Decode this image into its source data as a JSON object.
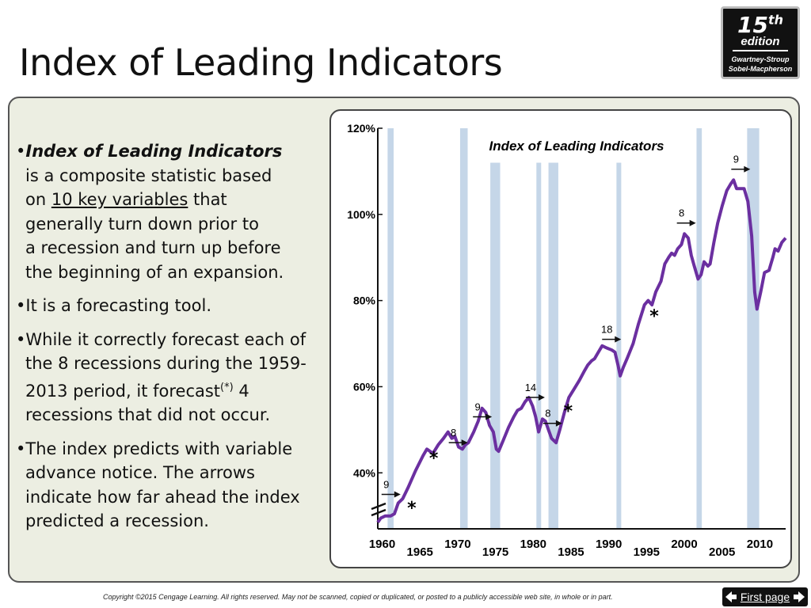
{
  "page": {
    "title": "Index of Leading Indicators",
    "badge": {
      "edition_number": "15",
      "edition_suffix": "th",
      "edition_word": "edition",
      "authors": [
        "Gwartney-Stroup",
        "Sobel-Macpherson"
      ]
    },
    "bullets": [
      {
        "lead": "Index of Leading Indicators",
        "lines_a": [
          "is a composite statistic based",
          "on "
        ],
        "underlined": "10 key variables",
        "lines_b": [
          " that",
          "generally turn down prior to",
          "a recession and turn up before",
          "the beginning of an expansion."
        ]
      },
      {
        "text": "It is a forecasting tool."
      },
      {
        "text_a": "While it correctly forecast each of the 8 recessions during the 1959-2013 period, it forecast",
        "sup": "(*)",
        "text_b": "4 recessions that did not occur."
      },
      {
        "text": "The index predicts with variable advance notice. The arrows indicate how far ahead the index predicted a recession."
      }
    ],
    "footer": "Copyright ©2015 Cengage Learning. All rights reserved. May not be scanned, copied or duplicated, or posted to a publicly accessible web site, in whole or in part.",
    "nav": {
      "label": "First page",
      "left_arrow_icon": "arrow-left-icon",
      "right_arrow_icon": "arrow-right-icon"
    }
  },
  "colors": {
    "line": "#6b2fa0",
    "recession_band": "#c5d6e8",
    "panel_bg": "#eceee2",
    "badge_bg": "#111111"
  },
  "chart_data": {
    "type": "line",
    "title": "Index of Leading Indicators",
    "xlabel": "",
    "ylabel": "",
    "x_ticks_row1": [
      "1960",
      "1970",
      "1980",
      "1990",
      "2000",
      "2010"
    ],
    "x_ticks_row2": [
      "1965",
      "1975",
      "1985",
      "1995",
      "2005"
    ],
    "y_ticks": [
      "40%",
      "60%",
      "80%",
      "100%",
      "120%"
    ],
    "ylim": [
      27,
      120
    ],
    "xlim": [
      1959,
      2013
    ],
    "axis_break": true,
    "recessions": [
      [
        1960.3,
        1961.1
      ],
      [
        1969.9,
        1970.9
      ],
      [
        1973.9,
        1975.2
      ],
      [
        1980.0,
        1980.6
      ],
      [
        1981.6,
        1982.9
      ],
      [
        1990.6,
        1991.2
      ],
      [
        2001.2,
        2001.9
      ],
      [
        2007.9,
        2009.5
      ]
    ],
    "series": [
      {
        "values": [
          [
            1959.0,
            28.5
          ],
          [
            1959.4,
            29.5
          ],
          [
            1960.0,
            30.0
          ],
          [
            1960.7,
            30.0
          ],
          [
            1961.2,
            30.5
          ],
          [
            1961.7,
            33.0
          ],
          [
            1962.3,
            34.0
          ],
          [
            1963.0,
            36.5
          ],
          [
            1964.0,
            40.5
          ],
          [
            1965.0,
            44.0
          ],
          [
            1965.5,
            45.5
          ],
          [
            1966.3,
            44.5
          ],
          [
            1967.0,
            46.5
          ],
          [
            1967.7,
            48.0
          ],
          [
            1968.3,
            49.5
          ],
          [
            1968.8,
            48.0
          ],
          [
            1969.2,
            48.5
          ],
          [
            1969.7,
            46.0
          ],
          [
            1970.2,
            45.5
          ],
          [
            1970.6,
            46.5
          ],
          [
            1971.0,
            47.0
          ],
          [
            1971.7,
            49.5
          ],
          [
            1972.3,
            52.0
          ],
          [
            1972.8,
            55.0
          ],
          [
            1973.3,
            54.0
          ],
          [
            1973.8,
            51.0
          ],
          [
            1974.3,
            49.5
          ],
          [
            1974.7,
            45.5
          ],
          [
            1975.0,
            45.0
          ],
          [
            1975.6,
            47.5
          ],
          [
            1976.3,
            50.5
          ],
          [
            1977.0,
            53.0
          ],
          [
            1977.5,
            54.5
          ],
          [
            1978.0,
            55.0
          ],
          [
            1978.5,
            56.5
          ],
          [
            1979.0,
            57.5
          ],
          [
            1979.5,
            55.5
          ],
          [
            1979.9,
            53.0
          ],
          [
            1980.3,
            49.5
          ],
          [
            1980.8,
            52.5
          ],
          [
            1981.2,
            52.0
          ],
          [
            1981.6,
            50.0
          ],
          [
            1982.0,
            48.0
          ],
          [
            1982.6,
            47.0
          ],
          [
            1983.1,
            50.0
          ],
          [
            1983.7,
            54.0
          ],
          [
            1984.3,
            57.5
          ],
          [
            1985.0,
            59.5
          ],
          [
            1985.7,
            61.5
          ],
          [
            1986.3,
            63.5
          ],
          [
            1986.8,
            65.0
          ],
          [
            1987.3,
            66.0
          ],
          [
            1987.7,
            66.5
          ],
          [
            1988.2,
            68.0
          ],
          [
            1988.7,
            69.5
          ],
          [
            1989.3,
            69.0
          ],
          [
            1990.0,
            68.5
          ],
          [
            1990.4,
            68.0
          ],
          [
            1990.8,
            65.0
          ],
          [
            1991.1,
            62.5
          ],
          [
            1991.5,
            64.5
          ],
          [
            1992.0,
            66.5
          ],
          [
            1992.8,
            70.0
          ],
          [
            1993.5,
            74.5
          ],
          [
            1994.3,
            79.0
          ],
          [
            1994.8,
            80.0
          ],
          [
            1995.3,
            79.0
          ],
          [
            1995.8,
            82.0
          ],
          [
            1996.5,
            84.5
          ],
          [
            1997.0,
            88.5
          ],
          [
            1997.5,
            90.0
          ],
          [
            1997.9,
            91.0
          ],
          [
            1998.3,
            90.5
          ],
          [
            1998.7,
            92.0
          ],
          [
            1999.2,
            93.0
          ],
          [
            1999.6,
            95.5
          ],
          [
            2000.1,
            94.5
          ],
          [
            2000.5,
            90.5
          ],
          [
            2000.9,
            88.0
          ],
          [
            2001.4,
            85.0
          ],
          [
            2001.8,
            86.0
          ],
          [
            2002.2,
            89.0
          ],
          [
            2002.7,
            88.0
          ],
          [
            2003.0,
            88.5
          ],
          [
            2003.5,
            93.5
          ],
          [
            2004.0,
            98.0
          ],
          [
            2004.6,
            102.0
          ],
          [
            2005.2,
            105.5
          ],
          [
            2005.7,
            107.0
          ],
          [
            2006.1,
            108.0
          ],
          [
            2006.5,
            106.0
          ],
          [
            2007.0,
            106.0
          ],
          [
            2007.5,
            106.0
          ],
          [
            2008.0,
            103.0
          ],
          [
            2008.5,
            95.0
          ],
          [
            2008.9,
            82.0
          ],
          [
            2009.2,
            78.0
          ],
          [
            2009.7,
            82.0
          ],
          [
            2010.2,
            86.5
          ],
          [
            2010.8,
            87.0
          ],
          [
            2011.3,
            90.0
          ],
          [
            2011.6,
            92.0
          ],
          [
            2012.0,
            91.5
          ],
          [
            2012.5,
            93.5
          ],
          [
            2013.0,
            94.5
          ]
        ]
      }
    ],
    "annotations": {
      "arrows": [
        {
          "label": "9",
          "x": 1959.5,
          "y": 35.0
        },
        {
          "label": "8",
          "x": 1968.4,
          "y": 47.0
        },
        {
          "label": "9",
          "x": 1971.6,
          "y": 53.0
        },
        {
          "label": "14",
          "x": 1978.6,
          "y": 57.5
        },
        {
          "label": "8",
          "x": 1980.9,
          "y": 51.5
        },
        {
          "label": "18",
          "x": 1988.7,
          "y": 71.0
        },
        {
          "label": "8",
          "x": 1998.6,
          "y": 98.0
        },
        {
          "label": "9",
          "x": 2005.8,
          "y": 110.5
        }
      ],
      "false_signals": [
        {
          "label": "*",
          "x": 1963.5,
          "y": 32.0
        },
        {
          "label": "*",
          "x": 1966.4,
          "y": 43.5
        },
        {
          "label": "*",
          "x": 1984.2,
          "y": 54.5
        },
        {
          "label": "*",
          "x": 1995.6,
          "y": 76.5
        }
      ]
    }
  }
}
